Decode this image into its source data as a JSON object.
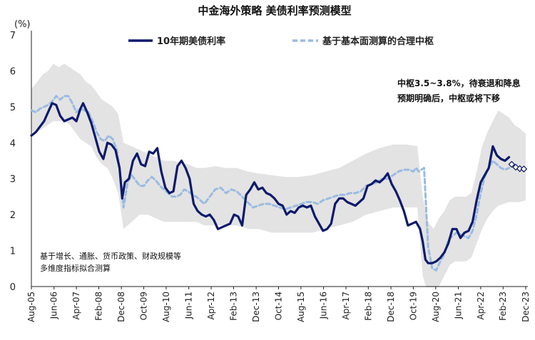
{
  "chart_data": {
    "type": "line",
    "title": "中金海外策略 美债利率预测模型",
    "ylabel": "(%)",
    "ylim": [
      0,
      7
    ],
    "yticks": [
      0,
      1,
      2,
      3,
      4,
      5,
      6,
      7
    ],
    "xlim": [
      2005.58,
      2024.0
    ],
    "x_tick_labels": [
      "Aug-05",
      "Jun-06",
      "Apr-07",
      "Feb-08",
      "Dec-08",
      "Oct-09",
      "Aug-10",
      "Jun-11",
      "Apr-12",
      "Feb-13",
      "Dec-13",
      "Oct-14",
      "Aug-15",
      "Jun-16",
      "Apr-17",
      "Feb-18",
      "Dec-18",
      "Oct-19",
      "Aug-20",
      "Jun-21",
      "Apr-22",
      "Feb-23",
      "Dec-23"
    ],
    "x_tick_positions": [
      2005.58,
      2006.42,
      2007.25,
      2008.08,
      2008.92,
      2009.75,
      2010.58,
      2011.42,
      2012.25,
      2013.08,
      2013.92,
      2014.75,
      2015.58,
      2016.42,
      2017.25,
      2018.08,
      2018.92,
      2019.75,
      2020.58,
      2021.42,
      2022.25,
      2023.08,
      2023.92
    ],
    "legend": [
      "10年期美债利率",
      "基于基本面测算的合理中枢"
    ],
    "annotations": {
      "top_right_line1": "中枢3.5~3.8%，待衰退和降息",
      "top_right_line2": "预期明确后，中枢或将下移",
      "bottom_left_line1": "基于增长、通胀、货币政策、财政规模等",
      "bottom_left_line2": "多维度指标拟合测算"
    },
    "series": [
      {
        "name": "10年期美债利率",
        "style": "solid",
        "color": "#0d1a6b",
        "x": [
          2005.58,
          2005.75,
          2005.9,
          2006.05,
          2006.2,
          2006.35,
          2006.5,
          2006.65,
          2006.8,
          2006.95,
          2007.1,
          2007.25,
          2007.4,
          2007.5,
          2007.65,
          2007.8,
          2007.95,
          2008.1,
          2008.25,
          2008.4,
          2008.55,
          2008.7,
          2008.85,
          2008.95,
          2009.05,
          2009.2,
          2009.35,
          2009.5,
          2009.65,
          2009.8,
          2009.95,
          2010.1,
          2010.25,
          2010.4,
          2010.55,
          2010.7,
          2010.85,
          2011.0,
          2011.15,
          2011.3,
          2011.45,
          2011.6,
          2011.75,
          2011.9,
          2012.05,
          2012.2,
          2012.35,
          2012.5,
          2012.65,
          2012.8,
          2012.95,
          2013.1,
          2013.25,
          2013.4,
          2013.55,
          2013.7,
          2013.85,
          2014.0,
          2014.15,
          2014.3,
          2014.45,
          2014.6,
          2014.75,
          2014.9,
          2015.05,
          2015.2,
          2015.35,
          2015.5,
          2015.65,
          2015.8,
          2015.95,
          2016.1,
          2016.25,
          2016.4,
          2016.55,
          2016.7,
          2016.85,
          2017.0,
          2017.15,
          2017.3,
          2017.45,
          2017.6,
          2017.75,
          2017.9,
          2018.05,
          2018.2,
          2018.35,
          2018.5,
          2018.65,
          2018.8,
          2018.95,
          2019.1,
          2019.25,
          2019.4,
          2019.55,
          2019.7,
          2019.85,
          2020.0,
          2020.1,
          2020.2,
          2020.3,
          2020.45,
          2020.6,
          2020.75,
          2020.9,
          2021.05,
          2021.2,
          2021.35,
          2021.5,
          2021.65,
          2021.8,
          2021.95,
          2022.1,
          2022.25,
          2022.4,
          2022.55,
          2022.7,
          2022.85,
          2023.0,
          2023.15,
          2023.3
        ],
        "y": [
          4.2,
          4.3,
          4.45,
          4.6,
          4.85,
          5.1,
          5.05,
          4.75,
          4.6,
          4.65,
          4.7,
          4.6,
          4.95,
          5.1,
          4.85,
          4.55,
          4.15,
          3.75,
          3.55,
          4.0,
          3.95,
          3.8,
          3.3,
          2.45,
          2.9,
          3.0,
          3.5,
          3.7,
          3.4,
          3.35,
          3.75,
          3.7,
          3.85,
          3.2,
          2.75,
          2.6,
          2.65,
          3.35,
          3.5,
          3.3,
          3.0,
          2.3,
          2.1,
          2.0,
          1.95,
          2.0,
          1.85,
          1.6,
          1.65,
          1.7,
          1.75,
          2.0,
          1.95,
          1.7,
          2.55,
          2.7,
          2.9,
          2.7,
          2.75,
          2.6,
          2.55,
          2.45,
          2.3,
          2.25,
          2.0,
          2.1,
          2.05,
          2.2,
          2.25,
          2.2,
          2.25,
          1.95,
          1.75,
          1.55,
          1.6,
          1.75,
          2.3,
          2.45,
          2.45,
          2.35,
          2.3,
          2.25,
          2.35,
          2.45,
          2.8,
          2.85,
          2.95,
          2.9,
          3.0,
          3.15,
          2.85,
          2.65,
          2.4,
          2.1,
          1.7,
          1.75,
          1.8,
          1.6,
          1.25,
          0.75,
          0.65,
          0.65,
          0.7,
          0.8,
          0.95,
          1.2,
          1.6,
          1.6,
          1.35,
          1.5,
          1.55,
          1.8,
          2.4,
          2.9,
          3.1,
          3.3,
          3.9,
          3.65,
          3.55,
          3.5,
          3.6
        ]
      },
      {
        "name": "基于基本面测算的合理中枢",
        "style": "dashed",
        "color": "#9bbbe0",
        "x": [
          2005.58,
          2005.75,
          2005.9,
          2006.05,
          2006.2,
          2006.35,
          2006.5,
          2006.65,
          2006.8,
          2006.95,
          2007.1,
          2007.25,
          2007.4,
          2007.55,
          2007.7,
          2007.85,
          2008.0,
          2008.15,
          2008.3,
          2008.45,
          2008.6,
          2008.75,
          2008.9,
          2009.0,
          2009.15,
          2009.3,
          2009.45,
          2009.6,
          2009.75,
          2009.9,
          2010.05,
          2010.2,
          2010.35,
          2010.5,
          2010.65,
          2010.8,
          2010.95,
          2011.1,
          2011.25,
          2011.4,
          2011.55,
          2011.7,
          2011.85,
          2012.0,
          2012.2,
          2012.4,
          2012.6,
          2012.8,
          2013.0,
          2013.2,
          2013.4,
          2013.6,
          2013.8,
          2014.0,
          2014.2,
          2014.4,
          2014.6,
          2014.8,
          2015.0,
          2015.2,
          2015.4,
          2015.6,
          2015.8,
          2016.0,
          2016.2,
          2016.4,
          2016.6,
          2016.8,
          2017.0,
          2017.2,
          2017.4,
          2017.6,
          2017.8,
          2018.0,
          2018.2,
          2018.4,
          2018.6,
          2018.8,
          2019.0,
          2019.2,
          2019.4,
          2019.6,
          2019.75,
          2019.85,
          2019.95,
          2020.05,
          2020.15,
          2020.3,
          2020.45,
          2020.6,
          2020.75,
          2020.9,
          2021.05,
          2021.2,
          2021.35,
          2021.5,
          2021.65,
          2021.8,
          2021.95,
          2022.1,
          2022.25,
          2022.4,
          2022.55,
          2022.7,
          2022.85,
          2023.0,
          2023.15,
          2023.3
        ],
        "y": [
          4.9,
          4.85,
          4.95,
          5.0,
          5.05,
          5.15,
          5.3,
          5.2,
          5.3,
          5.3,
          5.1,
          4.85,
          4.95,
          4.9,
          4.85,
          4.6,
          4.3,
          4.1,
          4.05,
          4.2,
          4.1,
          3.8,
          3.0,
          2.2,
          2.9,
          3.1,
          2.95,
          2.8,
          2.8,
          2.95,
          3.05,
          2.95,
          2.8,
          2.7,
          2.6,
          2.5,
          2.5,
          2.55,
          2.7,
          2.65,
          2.55,
          2.5,
          2.4,
          2.3,
          2.5,
          2.7,
          2.75,
          2.6,
          2.7,
          2.65,
          2.5,
          2.35,
          2.2,
          2.25,
          2.3,
          2.3,
          2.25,
          2.2,
          2.15,
          2.2,
          2.25,
          2.3,
          2.35,
          2.35,
          2.3,
          2.4,
          2.45,
          2.5,
          2.55,
          2.55,
          2.6,
          2.6,
          2.65,
          2.8,
          2.85,
          2.9,
          3.0,
          3.0,
          3.1,
          3.2,
          3.25,
          3.25,
          3.2,
          3.3,
          3.2,
          3.25,
          3.3,
          1.1,
          0.5,
          0.45,
          0.7,
          0.9,
          1.3,
          1.4,
          1.5,
          1.45,
          1.4,
          1.35,
          1.55,
          2.0,
          2.6,
          3.05,
          3.3,
          3.5,
          3.4,
          3.3,
          3.25,
          3.3
        ]
      },
      {
        "name": "projection",
        "style": "diamond-markers",
        "color": "#0d1a6b",
        "x": [
          2023.4,
          2023.55,
          2023.7,
          2023.85
        ],
        "y": [
          3.4,
          3.32,
          3.28,
          3.27
        ]
      }
    ],
    "band": {
      "name": "confidence range",
      "color": "#e3e3e3",
      "x": [
        2005.58,
        2005.8,
        2006.0,
        2006.2,
        2006.4,
        2006.6,
        2006.8,
        2007.0,
        2007.2,
        2007.4,
        2007.6,
        2007.8,
        2008.0,
        2008.2,
        2008.4,
        2008.6,
        2008.8,
        2009.0,
        2009.3,
        2009.6,
        2009.9,
        2010.2,
        2010.5,
        2010.8,
        2011.1,
        2011.4,
        2011.7,
        2012.0,
        2012.4,
        2012.8,
        2013.2,
        2013.6,
        2014.0,
        2014.5,
        2015.0,
        2015.5,
        2016.0,
        2016.5,
        2017.0,
        2017.5,
        2018.0,
        2018.5,
        2019.0,
        2019.5,
        2019.9,
        2020.1,
        2020.3,
        2020.5,
        2020.7,
        2020.9,
        2021.1,
        2021.3,
        2021.5,
        2021.7,
        2021.9,
        2022.1,
        2022.3,
        2022.5,
        2022.7,
        2022.9,
        2023.1,
        2023.3,
        2023.5,
        2023.7,
        2023.92
      ],
      "upper": [
        5.5,
        5.7,
        5.9,
        6.0,
        6.2,
        6.1,
        6.2,
        6.1,
        6.0,
        5.9,
        5.7,
        5.6,
        5.4,
        5.2,
        5.1,
        5.0,
        4.8,
        4.0,
        3.9,
        3.8,
        3.7,
        3.6,
        3.5,
        3.5,
        3.45,
        3.4,
        3.3,
        3.3,
        3.35,
        3.3,
        3.3,
        3.2,
        3.15,
        3.1,
        3.05,
        3.05,
        3.1,
        3.2,
        3.3,
        3.5,
        3.7,
        3.85,
        3.95,
        3.95,
        3.9,
        2.5,
        1.8,
        1.6,
        1.9,
        2.1,
        2.4,
        2.5,
        2.5,
        2.5,
        2.6,
        3.2,
        3.9,
        4.3,
        4.6,
        4.9,
        4.8,
        4.7,
        4.5,
        4.4,
        4.25
      ],
      "lower": [
        4.3,
        4.3,
        4.4,
        4.5,
        4.6,
        4.6,
        4.6,
        4.5,
        4.3,
        4.1,
        4.0,
        3.9,
        3.6,
        3.4,
        3.3,
        3.0,
        2.6,
        1.6,
        1.8,
        2.0,
        2.0,
        1.9,
        1.8,
        1.8,
        1.8,
        1.8,
        1.8,
        1.7,
        1.7,
        1.7,
        1.7,
        1.6,
        1.6,
        1.5,
        1.5,
        1.5,
        1.5,
        1.6,
        1.7,
        1.8,
        2.0,
        2.1,
        2.2,
        2.2,
        2.2,
        0.3,
        -0.2,
        -0.3,
        0.0,
        0.3,
        0.6,
        0.7,
        0.7,
        0.7,
        0.8,
        1.2,
        1.6,
        1.9,
        2.1,
        2.25,
        2.3,
        2.35,
        2.35,
        2.35,
        2.4
      ]
    }
  }
}
